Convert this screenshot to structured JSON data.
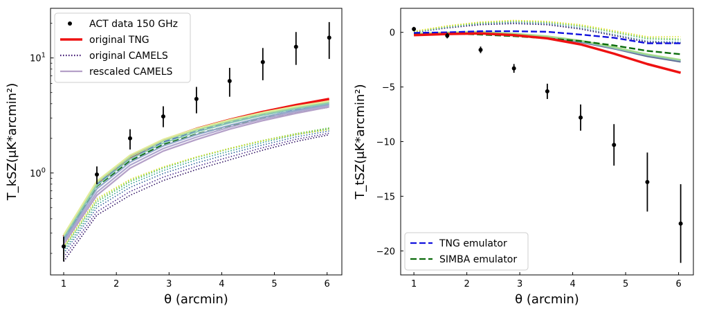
{
  "chart_data": [
    {
      "type": "line",
      "panel": "left",
      "yscale": "log",
      "xlabel": "θ (arcmin)",
      "ylabel": "T_kSZ(μK*arcmin²)",
      "xlim": [
        0.75,
        6.28
      ],
      "ylim": [
        0.13,
        27
      ],
      "xticks": [
        "1",
        "2",
        "3",
        "4",
        "5",
        "6"
      ],
      "yticks": [
        {
          "value": 1,
          "base": "10",
          "exp": "0"
        },
        {
          "value": 10,
          "base": "10",
          "exp": "1"
        }
      ],
      "x": [
        1.0,
        1.63,
        2.26,
        2.89,
        3.52,
        4.15,
        4.78,
        5.41,
        6.04
      ],
      "legend_position": "top-left",
      "legend": [
        {
          "label": "ACT data 150 GHz",
          "style": "marker",
          "color": "#000000"
        },
        {
          "label": "original TNG",
          "style": "solid",
          "color": "#ee1111"
        },
        {
          "label": "original CAMELS",
          "style": "dotted",
          "color": "#3a0f6e"
        },
        {
          "label": "rescaled CAMELS",
          "style": "solid",
          "color": "#b4a0c8"
        }
      ],
      "data_points": {
        "name": "ACT data 150 GHz",
        "y": [
          0.23,
          0.97,
          2.0,
          3.1,
          4.4,
          6.3,
          9.2,
          12.5,
          15.0
        ],
        "err_low": [
          0.06,
          0.17,
          0.4,
          0.6,
          1.1,
          1.7,
          2.8,
          3.8,
          5.2
        ],
        "err_high": [
          0.05,
          0.17,
          0.4,
          0.7,
          1.2,
          1.9,
          3.0,
          4.3,
          5.5
        ]
      },
      "series": [
        {
          "name": "original TNG",
          "style": "solid",
          "color": "#ee1111",
          "width": 3.5,
          "y": [
            0.28,
            0.82,
            1.37,
            1.93,
            2.42,
            2.9,
            3.4,
            3.9,
            4.4
          ]
        },
        {
          "name": "TNG emulator",
          "style": "dashed",
          "color": "#1010dd",
          "width": 2.4,
          "y": [
            0.265,
            0.8,
            1.32,
            1.85,
            2.3,
            2.75,
            3.2,
            3.6,
            4.0
          ]
        },
        {
          "name": "SIMBA emulator",
          "style": "dashed",
          "color": "#0a6a0a",
          "width": 2.4,
          "y": [
            0.255,
            0.77,
            1.27,
            1.76,
            2.17,
            2.58,
            2.98,
            3.36,
            3.75
          ]
        },
        {
          "name": "original CAMELS 1",
          "style": "dotted",
          "color": "#2a0b5e",
          "width": 1.6,
          "y": [
            0.17,
            0.43,
            0.64,
            0.86,
            1.07,
            1.3,
            1.58,
            1.88,
            2.15
          ]
        },
        {
          "name": "original CAMELS 2",
          "style": "dotted",
          "color": "#4a2a8a",
          "width": 1.6,
          "y": [
            0.185,
            0.46,
            0.69,
            0.92,
            1.14,
            1.38,
            1.66,
            1.96,
            2.22
          ]
        },
        {
          "name": "original CAMELS 3",
          "style": "dotted",
          "color": "#2f5f9a",
          "width": 1.6,
          "y": [
            0.2,
            0.5,
            0.75,
            0.99,
            1.22,
            1.47,
            1.75,
            2.06,
            2.32
          ]
        },
        {
          "name": "original CAMELS 4",
          "style": "dotted",
          "color": "#2a9a8a",
          "width": 1.6,
          "y": [
            0.21,
            0.53,
            0.8,
            1.05,
            1.3,
            1.55,
            1.84,
            2.15,
            2.42
          ]
        },
        {
          "name": "original CAMELS 5",
          "style": "dotted",
          "color": "#48b86a",
          "width": 1.6,
          "y": [
            0.22,
            0.56,
            0.84,
            1.1,
            1.36,
            1.62,
            1.9,
            2.2,
            2.47
          ]
        },
        {
          "name": "original CAMELS 6",
          "style": "dotted",
          "color": "#8fd03a",
          "width": 1.6,
          "y": [
            0.225,
            0.58,
            0.86,
            1.12,
            1.38,
            1.64,
            1.92,
            2.2,
            2.45
          ]
        },
        {
          "name": "original CAMELS 7",
          "style": "dotted",
          "color": "#d8e028",
          "width": 1.6,
          "y": [
            0.23,
            0.6,
            0.88,
            1.13,
            1.38,
            1.63,
            1.9,
            2.16,
            2.38
          ]
        },
        {
          "name": "rescaled CAMELS 1",
          "style": "solid",
          "color": "#b4a0c8",
          "width": 2.2,
          "y": [
            0.24,
            0.64,
            1.1,
            1.55,
            1.95,
            2.4,
            2.85,
            3.3,
            3.75
          ]
        },
        {
          "name": "rescaled CAMELS 2",
          "style": "solid",
          "color": "#b0a8d0",
          "width": 2.2,
          "y": [
            0.25,
            0.68,
            1.17,
            1.63,
            2.05,
            2.5,
            2.95,
            3.4,
            3.85
          ]
        },
        {
          "name": "rescaled CAMELS 3",
          "style": "solid",
          "color": "#8fa8c8",
          "width": 2.2,
          "y": [
            0.26,
            0.73,
            1.24,
            1.72,
            2.15,
            2.6,
            3.05,
            3.5,
            3.95
          ]
        },
        {
          "name": "rescaled CAMELS 4",
          "style": "solid",
          "color": "#8cc9b4",
          "width": 2.2,
          "y": [
            0.275,
            0.78,
            1.32,
            1.82,
            2.27,
            2.72,
            3.18,
            3.62,
            4.05
          ]
        },
        {
          "name": "rescaled CAMELS 5",
          "style": "solid",
          "color": "#a8dc9c",
          "width": 2.2,
          "y": [
            0.285,
            0.82,
            1.38,
            1.9,
            2.36,
            2.82,
            3.28,
            3.72,
            4.15
          ]
        },
        {
          "name": "rescaled CAMELS 6",
          "style": "solid",
          "color": "#e2ec9c",
          "width": 2.2,
          "y": [
            0.29,
            0.85,
            1.43,
            1.96,
            2.43,
            2.9,
            3.36,
            3.8,
            4.22
          ]
        }
      ]
    },
    {
      "type": "line",
      "panel": "right",
      "yscale": "linear",
      "xlabel": "θ (arcmin)",
      "ylabel": "T_tSZ(μK*arcmin²)",
      "xlim": [
        0.75,
        6.28
      ],
      "ylim": [
        -22.2,
        2.2
      ],
      "xticks": [
        "1",
        "2",
        "3",
        "4",
        "5",
        "6"
      ],
      "yticks": [
        {
          "value": 0,
          "label": "0"
        },
        {
          "value": -5,
          "label": "−5"
        },
        {
          "value": -10,
          "label": "−10"
        },
        {
          "value": -15,
          "label": "−15"
        },
        {
          "value": -20,
          "label": "−20"
        }
      ],
      "x": [
        1.0,
        1.63,
        2.26,
        2.89,
        3.52,
        4.15,
        4.78,
        5.41,
        6.04
      ],
      "legend_position": "lower-left",
      "legend": [
        {
          "label": "TNG emulator",
          "style": "dashed",
          "color": "#1010dd"
        },
        {
          "label": "SIMBA emulator",
          "style": "dashed",
          "color": "#0a6a0a"
        }
      ],
      "data_points": {
        "name": "ACT data 150 GHz",
        "y": [
          0.3,
          -0.3,
          -1.6,
          -3.3,
          -5.4,
          -7.8,
          -10.3,
          -13.7,
          -17.5
        ],
        "err_low": [
          0.2,
          0.25,
          0.3,
          0.4,
          0.7,
          1.2,
          1.9,
          2.7,
          3.6
        ],
        "err_high": [
          0.2,
          0.25,
          0.3,
          0.4,
          0.7,
          1.2,
          1.9,
          2.7,
          3.6
        ]
      },
      "series": [
        {
          "name": "original CAMELS 1",
          "style": "dotted",
          "color": "#2a0b5e",
          "width": 1.6,
          "y": [
            0.0,
            0.4,
            0.7,
            0.8,
            0.7,
            0.3,
            -0.3,
            -0.9,
            -1.0
          ]
        },
        {
          "name": "original CAMELS 2",
          "style": "dotted",
          "color": "#3a7a9a",
          "width": 1.6,
          "y": [
            0.0,
            0.45,
            0.8,
            0.9,
            0.8,
            0.4,
            -0.2,
            -0.8,
            -0.9
          ]
        },
        {
          "name": "original CAMELS 3",
          "style": "dotted",
          "color": "#48b86a",
          "width": 1.6,
          "y": [
            0.05,
            0.5,
            0.85,
            1.0,
            0.9,
            0.55,
            0.0,
            -0.6,
            -0.7
          ]
        },
        {
          "name": "original CAMELS 4",
          "style": "dotted",
          "color": "#8fd03a",
          "width": 1.6,
          "y": [
            0.05,
            0.55,
            0.9,
            1.05,
            0.95,
            0.6,
            0.05,
            -0.5,
            -0.6
          ]
        },
        {
          "name": "original CAMELS 5",
          "style": "dotted",
          "color": "#e0e020",
          "width": 1.6,
          "y": [
            0.1,
            0.6,
            0.95,
            1.1,
            1.0,
            0.7,
            0.15,
            -0.4,
            -0.4
          ]
        },
        {
          "name": "rescaled CAMELS 1",
          "style": "solid",
          "color": "#5a6a90",
          "width": 2.2,
          "y": [
            -0.2,
            -0.1,
            -0.1,
            -0.25,
            -0.5,
            -0.9,
            -1.5,
            -2.2,
            -2.7
          ]
        },
        {
          "name": "rescaled CAMELS 2",
          "style": "solid",
          "color": "#9aa8c8",
          "width": 2.2,
          "y": [
            -0.2,
            -0.1,
            -0.05,
            -0.2,
            -0.45,
            -0.85,
            -1.45,
            -2.1,
            -2.6
          ]
        },
        {
          "name": "rescaled CAMELS 3",
          "style": "solid",
          "color": "#7ac8a8",
          "width": 2.2,
          "y": [
            -0.15,
            -0.05,
            0.0,
            -0.15,
            -0.4,
            -0.8,
            -1.4,
            -2.05,
            -2.55
          ]
        },
        {
          "name": "rescaled CAMELS 4",
          "style": "solid",
          "color": "#a8dc8c",
          "width": 2.2,
          "y": [
            -0.1,
            0.0,
            0.05,
            -0.1,
            -0.35,
            -0.75,
            -1.35,
            -2.0,
            -2.5
          ]
        },
        {
          "name": "SIMBA emulator",
          "style": "dashed",
          "color": "#0a6a0a",
          "width": 2.4,
          "y": [
            -0.1,
            -0.1,
            -0.2,
            -0.35,
            -0.55,
            -0.8,
            -1.2,
            -1.7,
            -2.0
          ]
        },
        {
          "name": "TNG emulator",
          "style": "dashed",
          "color": "#1010dd",
          "width": 2.4,
          "y": [
            -0.05,
            0.0,
            0.1,
            0.1,
            0.05,
            -0.2,
            -0.5,
            -1.0,
            -1.0
          ]
        },
        {
          "name": "original TNG",
          "style": "solid",
          "color": "#ee1111",
          "width": 3.5,
          "y": [
            -0.25,
            -0.15,
            -0.1,
            -0.25,
            -0.55,
            -1.1,
            -1.95,
            -2.9,
            -3.7
          ]
        }
      ]
    }
  ]
}
